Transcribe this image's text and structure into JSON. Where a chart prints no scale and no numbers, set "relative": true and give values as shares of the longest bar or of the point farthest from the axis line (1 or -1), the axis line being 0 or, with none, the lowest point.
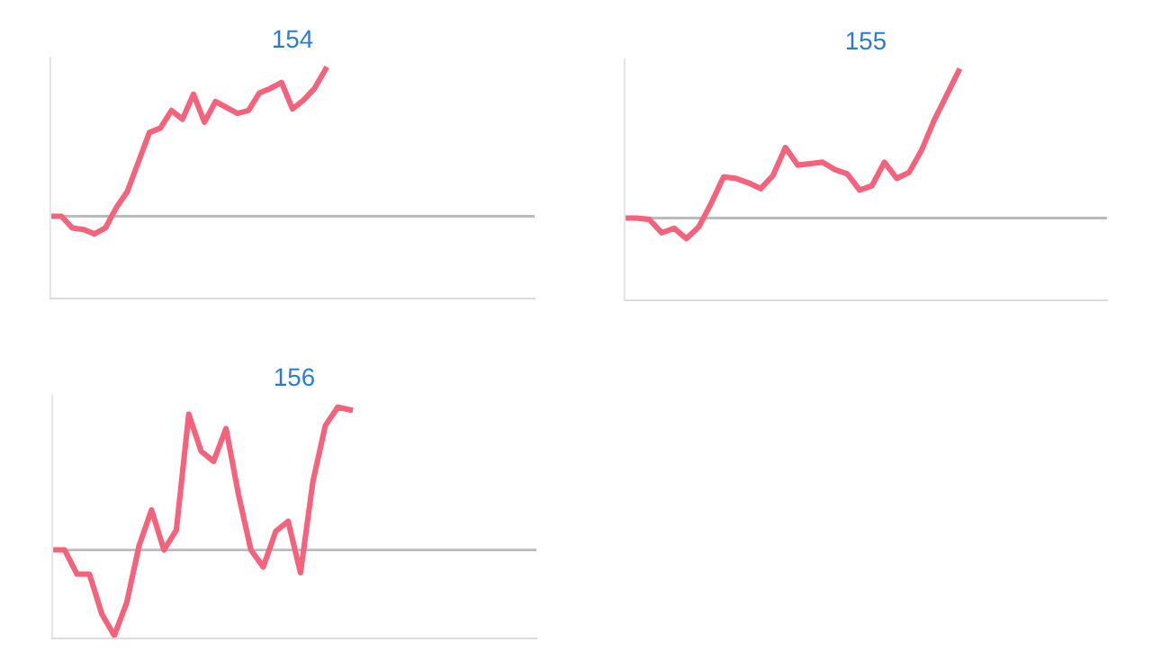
{
  "chart_data": [
    {
      "type": "line",
      "title": "154",
      "relative": true,
      "marker": "none",
      "line_style": "solid",
      "categories": [
        null,
        null,
        null,
        null,
        null,
        null,
        null,
        null,
        null,
        null,
        null,
        null,
        null,
        null,
        null,
        null,
        null,
        null,
        null,
        null,
        null,
        null,
        null,
        null,
        null,
        null,
        null,
        null,
        null,
        null,
        null,
        null,
        null,
        null,
        null,
        null,
        null,
        null,
        null,
        null,
        null,
        null,
        null,
        null,
        null
      ],
      "series": [
        {
          "color": "#f5627c",
          "values": [
            0,
            0,
            -0.08,
            -0.09,
            -0.12,
            -0.08,
            0.06,
            0.17,
            0.37,
            0.57,
            0.6,
            0.72,
            0.66,
            0.83,
            0.64,
            0.78,
            0.74,
            0.7,
            0.72,
            0.84,
            0.87,
            0.91,
            0.73,
            0.79,
            0.87,
            1,
            null,
            null,
            null,
            null,
            null,
            null,
            null,
            null,
            null,
            null,
            null,
            null,
            null,
            null,
            null,
            null,
            null,
            null,
            null
          ]
        }
      ]
    },
    {
      "type": "line",
      "title": "155",
      "relative": true,
      "marker": "none",
      "line_style": "solid",
      "categories": [
        null,
        null,
        null,
        null,
        null,
        null,
        null,
        null,
        null,
        null,
        null,
        null,
        null,
        null,
        null,
        null,
        null,
        null,
        null,
        null,
        null,
        null,
        null,
        null,
        null,
        null,
        null,
        null,
        null,
        null,
        null,
        null,
        null,
        null,
        null,
        null,
        null,
        null,
        null,
        null
      ],
      "series": [
        {
          "color": "#f5627c",
          "values": [
            0,
            0,
            -0.01,
            -0.1,
            -0.07,
            -0.14,
            -0.06,
            0.1,
            0.28,
            0.27,
            0.24,
            0.2,
            0.29,
            0.48,
            0.36,
            0.37,
            0.38,
            0.33,
            0.3,
            0.19,
            0.22,
            0.38,
            0.27,
            0.31,
            0.46,
            0.66,
            0.83,
            1,
            null,
            null,
            null,
            null,
            null,
            null,
            null,
            null,
            null,
            null,
            null,
            null
          ]
        }
      ]
    },
    {
      "type": "line",
      "title": "156",
      "relative": true,
      "marker": "none",
      "line_style": "solid",
      "categories": [
        null,
        null,
        null,
        null,
        null,
        null,
        null,
        null,
        null,
        null,
        null,
        null,
        null,
        null,
        null,
        null,
        null,
        null,
        null,
        null,
        null,
        null,
        null,
        null,
        null,
        null,
        null,
        null,
        null,
        null,
        null,
        null,
        null,
        null,
        null,
        null,
        null,
        null,
        null,
        null
      ],
      "series": [
        {
          "color": "#f5627c",
          "values": [
            0,
            0,
            -0.17,
            -0.17,
            -0.45,
            -0.6,
            -0.37,
            0.03,
            0.28,
            0,
            0.14,
            0.95,
            0.69,
            0.62,
            0.85,
            0.39,
            0,
            -0.12,
            0.13,
            0.2,
            -0.16,
            0.48,
            0.87,
            1,
            0.98,
            null,
            null,
            null,
            null,
            null,
            null,
            null,
            null,
            null,
            null,
            null,
            null,
            null,
            null,
            null
          ]
        }
      ]
    }
  ]
}
